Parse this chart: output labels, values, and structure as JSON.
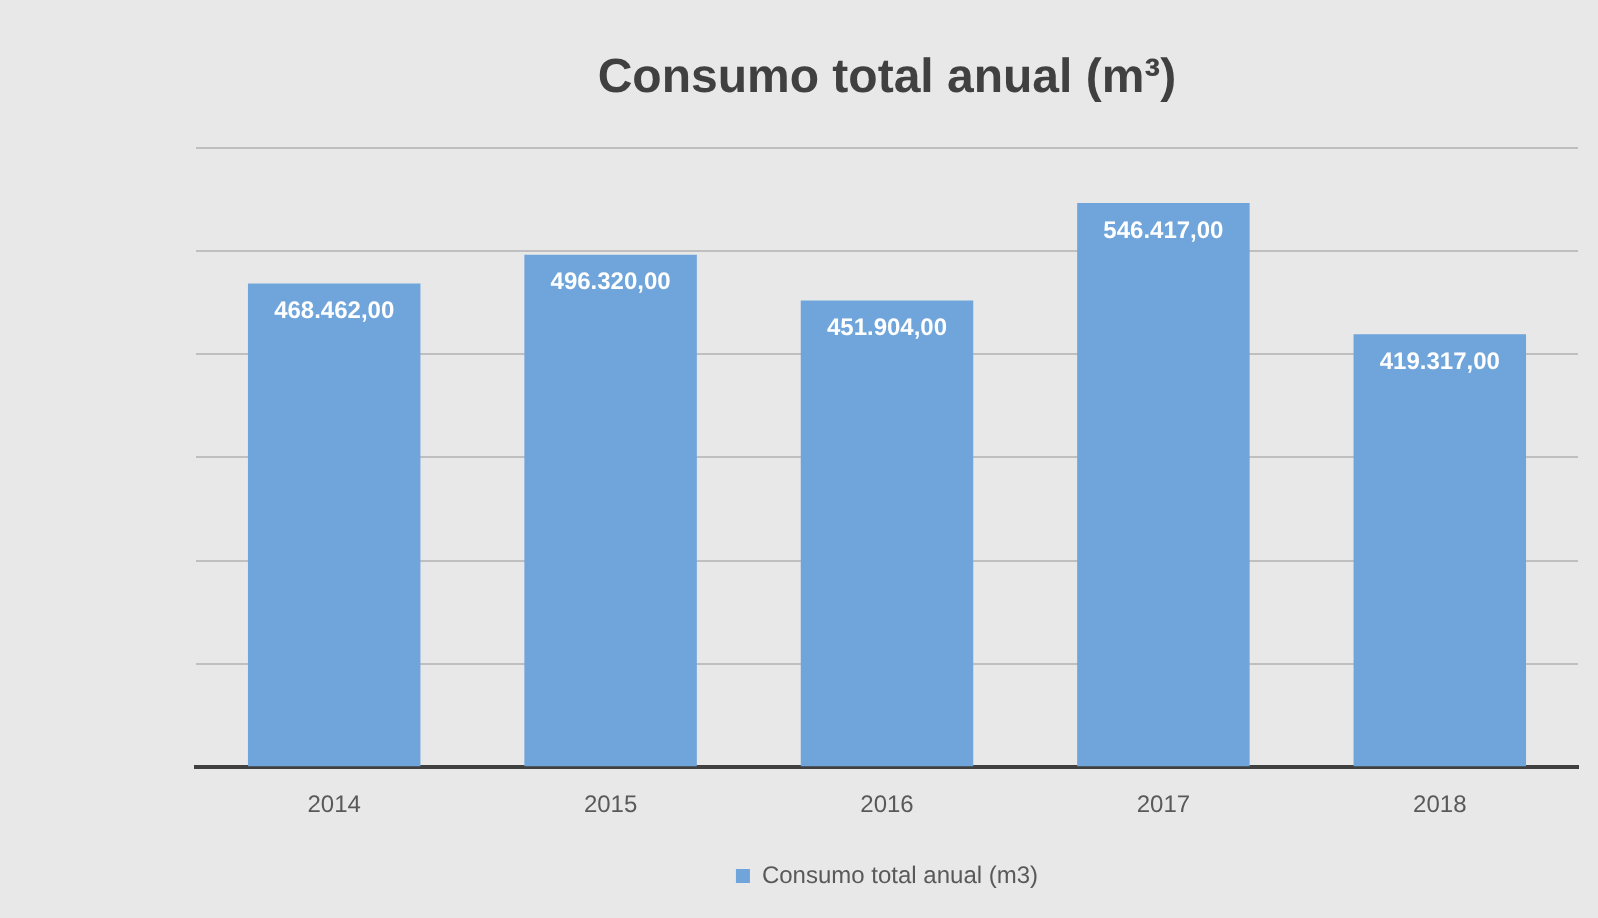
{
  "chart_data": {
    "type": "bar",
    "title": "Consumo total anual (m³)",
    "categories": [
      "2014",
      "2015",
      "2016",
      "2017",
      "2018"
    ],
    "series": [
      {
        "name": "Consumo total anual (m3)",
        "color": "#6fa5da",
        "values": [
          468462,
          496320,
          451904,
          546417,
          419317
        ],
        "value_labels": [
          "468.462,00",
          "496.320,00",
          "451.904,00",
          "546.417,00",
          "419.317,00"
        ]
      }
    ],
    "ylim": [
      0,
      600000
    ],
    "yticks": [
      {
        "value": 0,
        "label": null
      },
      {
        "value": 100000,
        "label": null
      },
      {
        "value": 200000,
        "label": null
      },
      {
        "value": 300000,
        "label": null
      },
      {
        "value": 400000,
        "label": null
      },
      {
        "value": 500000,
        "label": null
      },
      {
        "value": 600000,
        "label": null
      }
    ],
    "tick_labels": "x",
    "grid": "y",
    "legend": "bottom"
  }
}
